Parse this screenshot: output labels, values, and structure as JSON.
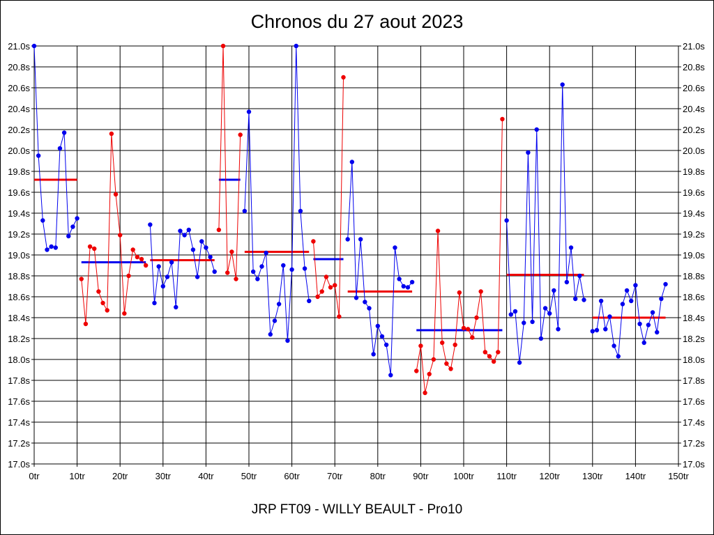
{
  "chart_data": {
    "type": "line",
    "title": "Chronos du 27 aout 2023",
    "footer": "JRP FT09 - WILLY BEAULT - Pro10",
    "xlim": [
      0,
      150
    ],
    "ylim": [
      17.0,
      21.0
    ],
    "x_ticks": [
      0,
      10,
      20,
      30,
      40,
      50,
      60,
      70,
      80,
      90,
      100,
      110,
      120,
      130,
      140,
      150
    ],
    "x_tick_labels": [
      "0tr",
      "10tr",
      "20tr",
      "30tr",
      "40tr",
      "50tr",
      "60tr",
      "70tr",
      "80tr",
      "90tr",
      "100tr",
      "110tr",
      "120tr",
      "130tr",
      "140tr",
      "150tr"
    ],
    "y_ticks": [
      17.0,
      17.2,
      17.4,
      17.6,
      17.8,
      18.0,
      18.2,
      18.4,
      18.6,
      18.8,
      19.0,
      19.2,
      19.4,
      19.6,
      19.8,
      20.0,
      20.2,
      20.4,
      20.6,
      20.8,
      21.0
    ],
    "y_tick_labels": [
      "17.0s",
      "17.2s",
      "17.4s",
      "17.6s",
      "17.8s",
      "18.0s",
      "18.2s",
      "18.4s",
      "18.6s",
      "18.8s",
      "19.0s",
      "19.2s",
      "19.4s",
      "19.6s",
      "19.8s",
      "20.0s",
      "20.2s",
      "20.4s",
      "20.6s",
      "20.8s",
      "21.0s"
    ],
    "grid": true,
    "colors": {
      "blue": "#0000ee",
      "red": "#ee0000"
    },
    "series": [
      {
        "color": "blue",
        "x": [
          0,
          1,
          2,
          3,
          4,
          5,
          6,
          7,
          8,
          9,
          10
        ],
        "y": [
          21.0,
          19.95,
          19.33,
          19.05,
          19.08,
          19.07,
          20.02,
          20.17,
          19.18,
          19.27,
          19.35
        ]
      },
      {
        "color": "red",
        "x": [
          11,
          12,
          13,
          14,
          15,
          16,
          17,
          18,
          19,
          20,
          21,
          22,
          23,
          24,
          25,
          26
        ],
        "y": [
          18.77,
          18.34,
          19.08,
          19.06,
          18.65,
          18.54,
          18.47,
          20.16,
          19.58,
          19.19,
          18.44,
          18.8,
          19.05,
          18.98,
          18.96,
          18.9
        ]
      },
      {
        "color": "blue",
        "x": [
          27,
          28,
          29,
          30,
          31,
          32,
          33,
          34,
          35,
          36,
          37,
          38,
          39,
          40,
          41,
          42
        ],
        "y": [
          19.29,
          18.54,
          18.89,
          18.7,
          18.79,
          18.93,
          18.5,
          19.23,
          19.19,
          19.24,
          19.05,
          18.79,
          19.13,
          19.07,
          18.98,
          18.84
        ]
      },
      {
        "color": "red",
        "x": [
          43,
          44,
          45,
          46,
          47,
          48
        ],
        "y": [
          19.24,
          21.0,
          18.83,
          19.03,
          18.77,
          20.15
        ]
      },
      {
        "color": "blue",
        "x": [
          49,
          50,
          51,
          52,
          53,
          54,
          55,
          56,
          57,
          58,
          59,
          60,
          61,
          62,
          63,
          64
        ],
        "y": [
          19.42,
          20.37,
          18.84,
          18.77,
          18.89,
          19.02,
          18.24,
          18.37,
          18.53,
          18.9,
          18.18,
          18.86,
          21.0,
          19.42,
          18.87,
          18.56
        ]
      },
      {
        "color": "red",
        "x": [
          65,
          66,
          67,
          68,
          69,
          70,
          71,
          72
        ],
        "y": [
          19.13,
          18.6,
          18.65,
          18.79,
          18.69,
          18.71,
          18.41,
          20.7
        ]
      },
      {
        "color": "blue",
        "x": [
          73,
          74,
          75,
          76,
          77,
          78,
          79,
          80,
          81,
          82,
          83,
          84,
          85,
          86,
          87,
          88
        ],
        "y": [
          19.15,
          19.89,
          18.59,
          19.15,
          18.55,
          18.49,
          18.05,
          18.32,
          18.22,
          18.14,
          17.85,
          19.07,
          18.77,
          18.7,
          18.69,
          18.74
        ]
      },
      {
        "color": "red",
        "x": [
          89,
          90,
          91,
          92,
          93,
          94,
          95,
          96,
          97,
          98,
          99,
          100,
          101,
          102,
          103,
          104,
          105,
          106,
          107,
          108,
          109
        ],
        "y": [
          17.89,
          18.13,
          17.68,
          17.86,
          18.0,
          19.23,
          18.16,
          17.96,
          17.91,
          18.14,
          18.64,
          18.3,
          18.29,
          18.21,
          18.4,
          18.65,
          18.07,
          18.03,
          17.98,
          18.07,
          20.3
        ]
      },
      {
        "color": "blue",
        "x": [
          110,
          111,
          112,
          113,
          114,
          115,
          116,
          117,
          118,
          119,
          120,
          121,
          122,
          123,
          124,
          125,
          126,
          127,
          128
        ],
        "y": [
          19.33,
          18.43,
          18.46,
          17.97,
          18.35,
          19.98,
          18.36,
          20.2,
          18.2,
          18.49,
          18.44,
          18.66,
          18.29,
          20.63,
          18.74,
          19.07,
          18.58,
          18.8,
          18.57
        ]
      },
      {
        "color": "blue",
        "x": [
          130,
          131,
          132,
          133,
          134,
          135,
          136,
          137,
          138,
          139,
          140,
          141,
          142,
          143,
          144,
          145,
          146,
          147
        ],
        "y": [
          18.27,
          18.28,
          18.56,
          18.29,
          18.41,
          18.13,
          18.03,
          18.53,
          18.66,
          18.56,
          18.71,
          18.34,
          18.16,
          18.33,
          18.45,
          18.26,
          18.58,
          18.72
        ]
      }
    ],
    "averages": [
      {
        "color": "red",
        "x": [
          0,
          10
        ],
        "y": 19.72
      },
      {
        "color": "blue",
        "x": [
          11,
          26
        ],
        "y": 18.93
      },
      {
        "color": "red",
        "x": [
          27,
          42
        ],
        "y": 18.95
      },
      {
        "color": "blue",
        "x": [
          43,
          48
        ],
        "y": 19.72
      },
      {
        "color": "red",
        "x": [
          49,
          64
        ],
        "y": 19.03
      },
      {
        "color": "blue",
        "x": [
          65,
          72
        ],
        "y": 18.96
      },
      {
        "color": "red",
        "x": [
          73,
          88
        ],
        "y": 18.65
      },
      {
        "color": "blue",
        "x": [
          89,
          109
        ],
        "y": 18.28
      },
      {
        "color": "red",
        "x": [
          110,
          128
        ],
        "y": 18.81
      },
      {
        "color": "red",
        "x": [
          130,
          147
        ],
        "y": 18.4
      }
    ]
  }
}
